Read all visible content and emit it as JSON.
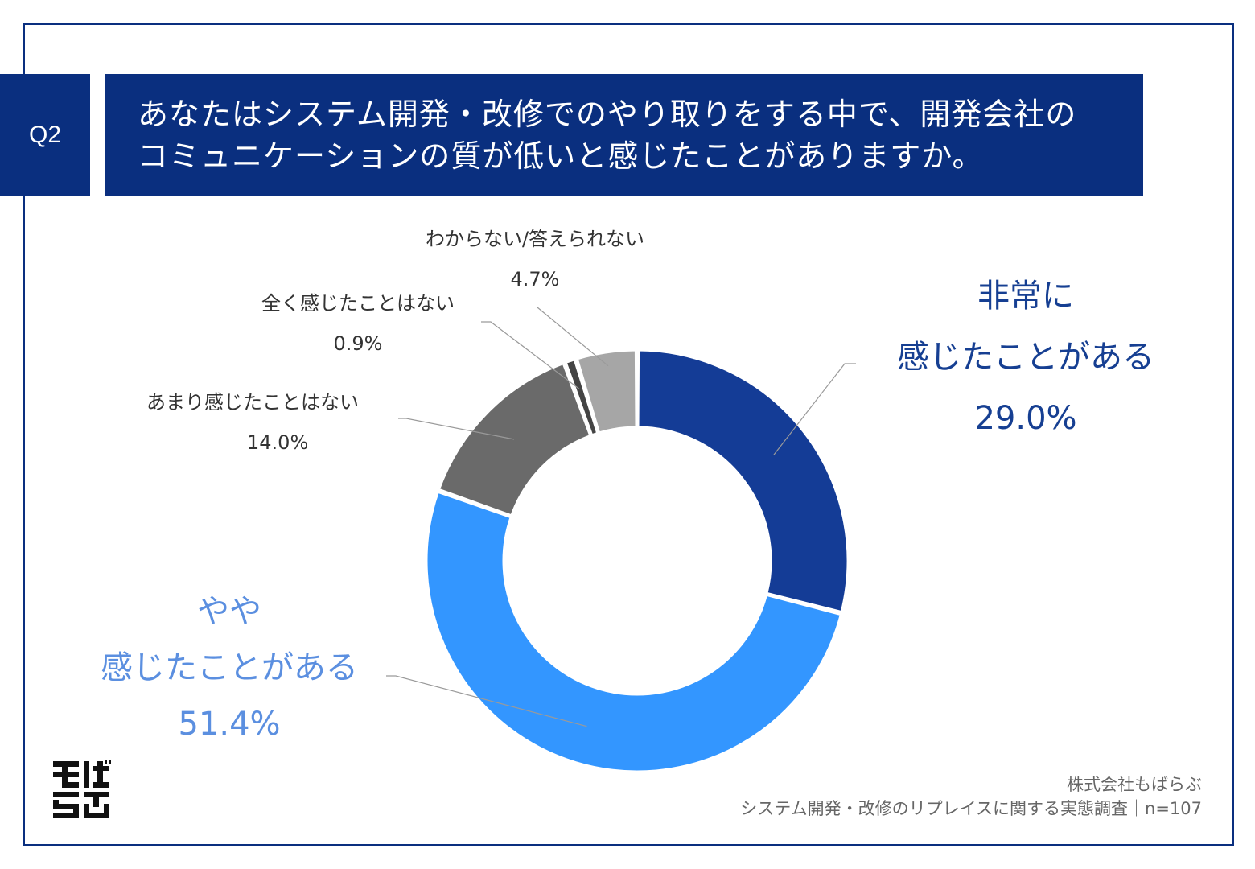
{
  "question": {
    "number": "Q2",
    "lines": [
      "あなたはシステム開発・改修でのやり取りをする中で、開発会社の",
      "コミュニケーションの質が低いと感じたことがありますか。"
    ]
  },
  "chart_data": {
    "type": "pie",
    "donut": true,
    "slices": [
      {
        "label_lines": [
          "非常に",
          "感じたことがある"
        ],
        "value": 29.0,
        "display": "29.0%",
        "color": "#143c96"
      },
      {
        "label_lines": [
          "やや",
          "感じたことがある"
        ],
        "value": 51.4,
        "display": "51.4%",
        "color": "#3396ff"
      },
      {
        "label_lines": [
          "あまり感じたことはない"
        ],
        "value": 14.0,
        "display": "14.0%",
        "color": "#6a6a6a"
      },
      {
        "label_lines": [
          "全く感じたことはない"
        ],
        "value": 0.9,
        "display": "0.9%",
        "color": "#444444"
      },
      {
        "label_lines": [
          "わからない/答えられない"
        ],
        "value": 4.7,
        "display": "4.7%",
        "color": "#a6a6a6"
      }
    ]
  },
  "logo": {
    "lines": [
      "もば",
      "らぶ"
    ]
  },
  "footer": {
    "company": "株式会社もばらぶ",
    "survey": "システム開発・改修のリプレイスに関する実態調査｜n=107"
  }
}
